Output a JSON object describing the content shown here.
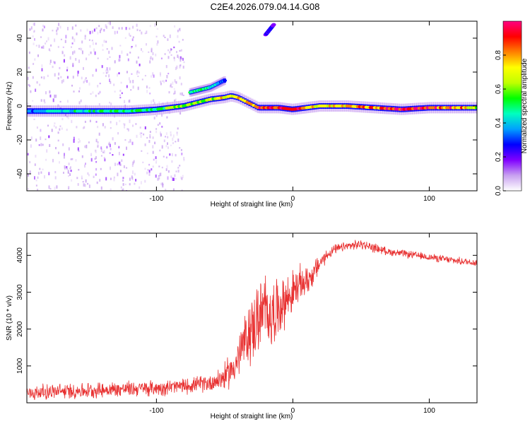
{
  "figure_title": "C2E4.2026.079.04.14.G08",
  "chart_data": [
    {
      "type": "heatmap",
      "title": "C2E4.2026.079.04.14.G08",
      "xlabel": "Height of straight line (km)",
      "ylabel": "Frequency (Hz)",
      "xlim": [
        -195,
        135
      ],
      "ylim": [
        -50,
        50
      ],
      "xticks": [
        -100,
        0,
        100
      ],
      "xtick_labels": [
        "-100",
        "0",
        "100"
      ],
      "yticks": [
        -40,
        -20,
        0,
        20,
        40
      ],
      "ytick_labels": [
        "-40",
        "-20",
        "0",
        "20",
        "40"
      ],
      "colorbar": {
        "label": "Normalized spectral amplitude",
        "range": [
          0,
          1
        ],
        "ticks": [
          0,
          0.2,
          0.4,
          0.6,
          0.8
        ],
        "tick_labels": [
          "0.0",
          "0.2",
          "0.4",
          "0.6",
          "0.8"
        ],
        "colormap": [
          "#ffffff",
          "#c8a0f0",
          "#8000ff",
          "#0000ff",
          "#00a0ff",
          "#00ffc0",
          "#00ff00",
          "#c0ff00",
          "#ffff00",
          "#ff8000",
          "#ff0000",
          "#ff0080"
        ]
      },
      "main_trace": {
        "x": [
          -195,
          -180,
          -160,
          -140,
          -120,
          -100,
          -90,
          -80,
          -70,
          -60,
          -50,
          -45,
          -40,
          -35,
          -30,
          -25,
          -20,
          -10,
          0,
          10,
          20,
          40,
          60,
          80,
          100,
          120,
          135
        ],
        "frequency": [
          -3,
          -3,
          -3,
          -3,
          -3,
          -2,
          -1,
          0,
          2,
          4,
          5,
          6,
          5,
          3,
          1,
          -1,
          -1,
          -1,
          -2,
          -1,
          0,
          0,
          -1,
          -2,
          -1,
          -1,
          -1
        ],
        "amplitude": [
          0.35,
          0.4,
          0.45,
          0.45,
          0.5,
          0.5,
          0.55,
          0.6,
          0.6,
          0.65,
          0.7,
          0.75,
          0.7,
          0.75,
          0.8,
          0.85,
          0.9,
          0.85,
          0.9,
          0.8,
          0.7,
          0.75,
          0.8,
          0.95,
          0.9,
          0.85,
          0.6
        ]
      },
      "secondary_trace": {
        "x": [
          -75,
          -70,
          -65,
          -60,
          -55,
          -50
        ],
        "frequency": [
          8,
          9,
          10,
          11,
          13,
          15
        ],
        "amplitude": [
          0.45,
          0.5,
          0.5,
          0.45,
          0.4,
          0.3
        ]
      },
      "high_freq_streak": {
        "x": [
          -20,
          -18,
          -16,
          -14
        ],
        "frequency": [
          42,
          44,
          46,
          48
        ],
        "amplitude": [
          0.2,
          0.25,
          0.25,
          0.2
        ]
      },
      "noise_region": {
        "x": [
          -195,
          -80
        ],
        "frequency": [
          -50,
          50
        ],
        "amplitude": 0.15
      }
    },
    {
      "type": "line",
      "xlabel": "Height of straight line (km)",
      "ylabel": "SNR (10 * v/v)",
      "xlim": [
        -195,
        135
      ],
      "ylim": [
        0,
        4600
      ],
      "xticks": [
        -100,
        0,
        100
      ],
      "xtick_labels": [
        "-100",
        "0",
        "100"
      ],
      "yticks": [
        1000,
        2000,
        3000,
        4000
      ],
      "ytick_labels": [
        "1000",
        "2000",
        "3000",
        "4000"
      ],
      "color": "#e83030",
      "series": [
        {
          "name": "SNR",
          "x": [
            -195,
            -180,
            -160,
            -140,
            -120,
            -100,
            -80,
            -70,
            -60,
            -55,
            -50,
            -45,
            -40,
            -35,
            -30,
            -25,
            -20,
            -15,
            -10,
            -5,
            0,
            5,
            10,
            15,
            20,
            25,
            30,
            40,
            50,
            60,
            70,
            80,
            90,
            100,
            110,
            120,
            135
          ],
          "values": [
            250,
            300,
            320,
            350,
            380,
            400,
            450,
            500,
            550,
            620,
            700,
            900,
            1200,
            1700,
            2000,
            2300,
            2500,
            2400,
            2600,
            2800,
            3000,
            3200,
            3300,
            3500,
            3800,
            4000,
            4150,
            4250,
            4300,
            4200,
            4100,
            4050,
            4000,
            3950,
            3900,
            3850,
            3800
          ],
          "noise_amplitude": [
            250,
            250,
            250,
            250,
            250,
            250,
            250,
            250,
            300,
            350,
            450,
            550,
            700,
            900,
            1100,
            1200,
            1200,
            1100,
            900,
            800,
            700,
            600,
            500,
            400,
            300,
            200,
            150,
            150,
            150,
            150,
            120,
            120,
            120,
            120,
            120,
            120,
            120
          ]
        }
      ]
    }
  ]
}
